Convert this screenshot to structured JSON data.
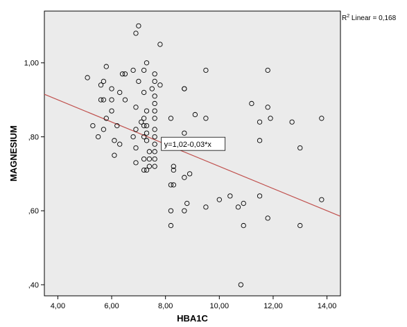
{
  "chart_data": {
    "type": "scatter",
    "xlabel": "HBA1C",
    "ylabel": "MAGNESIUM",
    "xlim": [
      3.5,
      14.5
    ],
    "ylim": [
      0.37,
      1.14
    ],
    "x_ticks": [
      4,
      6,
      8,
      10,
      12,
      14
    ],
    "x_tick_labels": [
      "4,00",
      "6,00",
      "8,00",
      "10,00",
      "12,00",
      "14,00"
    ],
    "y_ticks": [
      0.4,
      0.6,
      0.8,
      1.0
    ],
    "y_tick_labels": [
      ",40",
      ",60",
      ",80",
      "1,00"
    ],
    "grid": false,
    "r2_label": {
      "prefix": "R",
      "superscript": "2",
      "text": " Linear = 0,168"
    },
    "fit_line": {
      "intercept": 1.02,
      "slope": -0.03,
      "label": "y=1,02-0,03*x",
      "label_at_x": 8.0,
      "color": "#c0504d"
    },
    "background_color": "#ebebeb",
    "points": [
      [
        5.1,
        0.96
      ],
      [
        5.3,
        0.83
      ],
      [
        5.5,
        0.8
      ],
      [
        5.6,
        0.9
      ],
      [
        5.6,
        0.94
      ],
      [
        5.7,
        0.95
      ],
      [
        5.7,
        0.9
      ],
      [
        5.7,
        0.82
      ],
      [
        5.8,
        0.99
      ],
      [
        5.8,
        0.85
      ],
      [
        6.0,
        0.93
      ],
      [
        6.0,
        0.9
      ],
      [
        6.0,
        0.87
      ],
      [
        6.1,
        0.79
      ],
      [
        6.1,
        0.75
      ],
      [
        6.2,
        0.83
      ],
      [
        6.3,
        0.92
      ],
      [
        6.3,
        0.78
      ],
      [
        6.4,
        0.97
      ],
      [
        6.5,
        0.97
      ],
      [
        6.5,
        0.9
      ],
      [
        6.8,
        0.98
      ],
      [
        6.8,
        0.8
      ],
      [
        6.9,
        1.08
      ],
      [
        6.9,
        0.88
      ],
      [
        6.9,
        0.82
      ],
      [
        6.9,
        0.77
      ],
      [
        6.9,
        0.73
      ],
      [
        7.0,
        1.1
      ],
      [
        7.0,
        0.95
      ],
      [
        7.1,
        0.84
      ],
      [
        7.2,
        0.98
      ],
      [
        7.2,
        0.92
      ],
      [
        7.2,
        0.85
      ],
      [
        7.2,
        0.83
      ],
      [
        7.2,
        0.8
      ],
      [
        7.2,
        0.74
      ],
      [
        7.2,
        0.71
      ],
      [
        7.3,
        1.0
      ],
      [
        7.3,
        0.87
      ],
      [
        7.3,
        0.83
      ],
      [
        7.3,
        0.81
      ],
      [
        7.3,
        0.79
      ],
      [
        7.3,
        0.71
      ],
      [
        7.4,
        0.76
      ],
      [
        7.4,
        0.74
      ],
      [
        7.4,
        0.72
      ],
      [
        7.5,
        0.93
      ],
      [
        7.6,
        0.97
      ],
      [
        7.6,
        0.95
      ],
      [
        7.6,
        0.91
      ],
      [
        7.6,
        0.89
      ],
      [
        7.6,
        0.87
      ],
      [
        7.6,
        0.85
      ],
      [
        7.6,
        0.82
      ],
      [
        7.6,
        0.8
      ],
      [
        7.6,
        0.78
      ],
      [
        7.6,
        0.76
      ],
      [
        7.6,
        0.74
      ],
      [
        7.6,
        0.72
      ],
      [
        7.8,
        1.05
      ],
      [
        7.8,
        0.94
      ],
      [
        8.2,
        0.85
      ],
      [
        8.2,
        0.67
      ],
      [
        8.2,
        0.6
      ],
      [
        8.2,
        0.56
      ],
      [
        8.3,
        0.72
      ],
      [
        8.3,
        0.71
      ],
      [
        8.3,
        0.67
      ],
      [
        8.7,
        0.93
      ],
      [
        8.7,
        0.93
      ],
      [
        8.7,
        0.81
      ],
      [
        8.7,
        0.69
      ],
      [
        8.7,
        0.6
      ],
      [
        8.8,
        0.62
      ],
      [
        8.9,
        0.7
      ],
      [
        9.1,
        0.86
      ],
      [
        9.5,
        0.98
      ],
      [
        9.5,
        0.85
      ],
      [
        9.5,
        0.61
      ],
      [
        10.0,
        0.63
      ],
      [
        10.4,
        0.64
      ],
      [
        10.7,
        0.61
      ],
      [
        10.8,
        0.4
      ],
      [
        10.9,
        0.62
      ],
      [
        10.9,
        0.56
      ],
      [
        11.2,
        0.89
      ],
      [
        11.5,
        0.84
      ],
      [
        11.5,
        0.79
      ],
      [
        11.5,
        0.64
      ],
      [
        11.8,
        0.98
      ],
      [
        11.8,
        0.88
      ],
      [
        11.8,
        0.58
      ],
      [
        11.9,
        0.85
      ],
      [
        12.7,
        0.84
      ],
      [
        13.0,
        0.77
      ],
      [
        13.0,
        0.56
      ],
      [
        13.8,
        0.85
      ],
      [
        13.8,
        0.63
      ]
    ]
  }
}
